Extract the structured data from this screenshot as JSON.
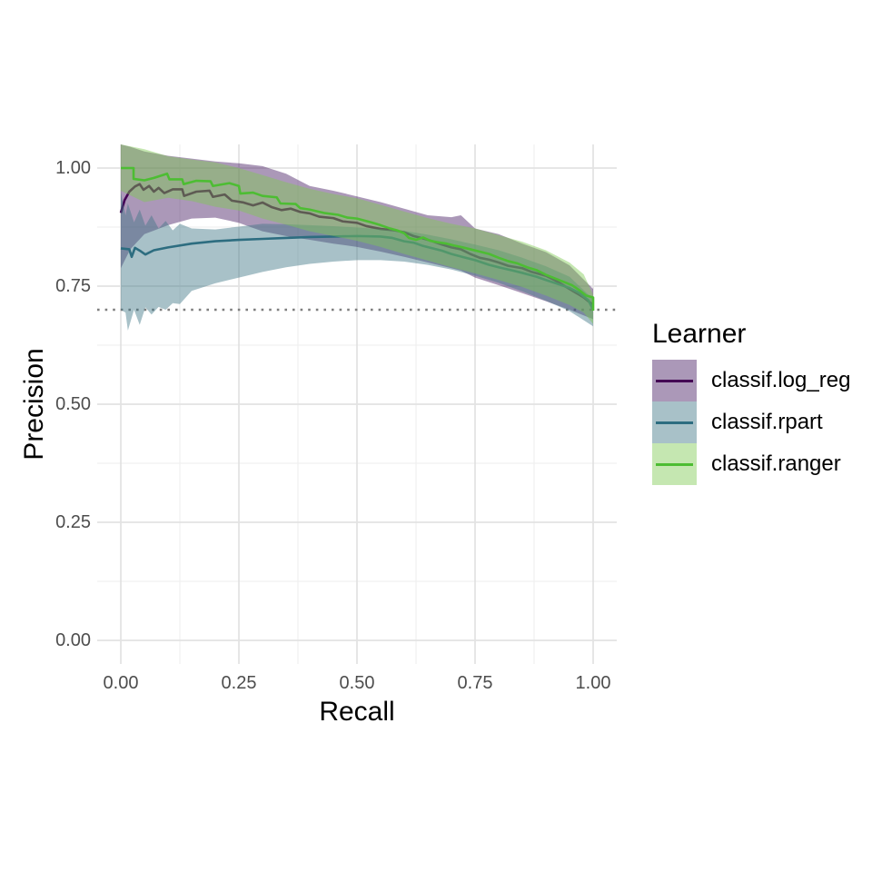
{
  "figure": {
    "background": "#ffffff"
  },
  "colors": {
    "grid_major": "#e3e3e3",
    "grid_minor": "#f0f0f0",
    "baseline": "#7e7e7e",
    "tick_text": "#4d4d4d",
    "title_text": "#000000"
  },
  "axes": {
    "x": {
      "ticks": [
        {
          "value": 0,
          "label": "0.00"
        },
        {
          "value": 0.25,
          "label": "0.25"
        },
        {
          "value": 0.5,
          "label": "0.50"
        },
        {
          "value": 0.75,
          "label": "0.75"
        },
        {
          "value": 1,
          "label": "1.00"
        }
      ],
      "minor_ticks": [
        0.125,
        0.375,
        0.625,
        0.875
      ]
    },
    "y": {
      "ticks": [
        {
          "value": 1,
          "label": "1.00"
        },
        {
          "value": 0.75,
          "label": "0.75"
        },
        {
          "value": 0.5,
          "label": "0.50"
        },
        {
          "value": 0.25,
          "label": "0.25"
        },
        {
          "value": 0,
          "label": "0.00"
        }
      ],
      "minor_ticks": [
        0.125,
        0.375,
        0.625,
        0.875
      ]
    }
  },
  "legend": {
    "title": "Learner",
    "position": "right"
  },
  "chart_data": {
    "type": "line",
    "title": "",
    "xlabel": "Recall",
    "ylabel": "Precision",
    "xlim": [
      0,
      1
    ],
    "ylim": [
      0,
      1
    ],
    "grid": true,
    "legend_position": "right",
    "baseline": {
      "value": 0.7,
      "linetype": "dotted",
      "color": "#7e7e7e"
    },
    "series": [
      {
        "name": "classif.log_reg",
        "line_color": "#440154",
        "fill_color": "rgba(68,26,97,0.45)",
        "points": [
          [
            0,
            0.905
          ],
          [
            0.008,
            0.932
          ],
          [
            0.018,
            0.95
          ],
          [
            0.03,
            0.961
          ],
          [
            0.04,
            0.966
          ],
          [
            0.048,
            0.954
          ],
          [
            0.06,
            0.962
          ],
          [
            0.07,
            0.95
          ],
          [
            0.08,
            0.958
          ],
          [
            0.092,
            0.947
          ],
          [
            0.11,
            0.955
          ],
          [
            0.13,
            0.955
          ],
          [
            0.134,
            0.941
          ],
          [
            0.16,
            0.95
          ],
          [
            0.188,
            0.952
          ],
          [
            0.195,
            0.939
          ],
          [
            0.22,
            0.944
          ],
          [
            0.235,
            0.931
          ],
          [
            0.26,
            0.927
          ],
          [
            0.28,
            0.921
          ],
          [
            0.3,
            0.927
          ],
          [
            0.32,
            0.917
          ],
          [
            0.34,
            0.911
          ],
          [
            0.36,
            0.914
          ],
          [
            0.38,
            0.907
          ],
          [
            0.4,
            0.904
          ],
          [
            0.42,
            0.897
          ],
          [
            0.45,
            0.894
          ],
          [
            0.47,
            0.887
          ],
          [
            0.5,
            0.884
          ],
          [
            0.52,
            0.877
          ],
          [
            0.55,
            0.871
          ],
          [
            0.58,
            0.868
          ],
          [
            0.6,
            0.864
          ],
          [
            0.62,
            0.856
          ],
          [
            0.64,
            0.851
          ],
          [
            0.66,
            0.845
          ],
          [
            0.68,
            0.838
          ],
          [
            0.7,
            0.832
          ],
          [
            0.72,
            0.828
          ],
          [
            0.74,
            0.818
          ],
          [
            0.76,
            0.81
          ],
          [
            0.78,
            0.806
          ],
          [
            0.8,
            0.8
          ],
          [
            0.82,
            0.793
          ],
          [
            0.85,
            0.788
          ],
          [
            0.87,
            0.78
          ],
          [
            0.9,
            0.772
          ],
          [
            0.92,
            0.762
          ],
          [
            0.94,
            0.75
          ],
          [
            0.96,
            0.738
          ],
          [
            0.98,
            0.726
          ],
          [
            1,
            0.71
          ]
        ],
        "band": [
          [
            0,
            0.788,
            1.05
          ],
          [
            0.02,
            0.828,
            1.045
          ],
          [
            0.05,
            0.86,
            1.035
          ],
          [
            0.1,
            0.879,
            1.026
          ],
          [
            0.15,
            0.893,
            1.02
          ],
          [
            0.2,
            0.895,
            1.014
          ],
          [
            0.25,
            0.884,
            1.01
          ],
          [
            0.3,
            0.866,
            1.004
          ],
          [
            0.35,
            0.856,
            0.988
          ],
          [
            0.4,
            0.848,
            0.962
          ],
          [
            0.45,
            0.84,
            0.952
          ],
          [
            0.5,
            0.833,
            0.94
          ],
          [
            0.55,
            0.823,
            0.928
          ],
          [
            0.6,
            0.812,
            0.914
          ],
          [
            0.65,
            0.8,
            0.9
          ],
          [
            0.7,
            0.788,
            0.896
          ],
          [
            0.72,
            0.783,
            0.9
          ],
          [
            0.75,
            0.768,
            0.872
          ],
          [
            0.8,
            0.752,
            0.86
          ],
          [
            0.85,
            0.735,
            0.84
          ],
          [
            0.9,
            0.718,
            0.822
          ],
          [
            0.95,
            0.7,
            0.794
          ],
          [
            1,
            0.68,
            0.744
          ]
        ]
      },
      {
        "name": "classif.rpart",
        "line_color": "#2d6d80",
        "fill_color": "rgba(62,117,133,0.45)",
        "points": [
          [
            0,
            0.83
          ],
          [
            0.018,
            0.828
          ],
          [
            0.023,
            0.812
          ],
          [
            0.03,
            0.831
          ],
          [
            0.042,
            0.824
          ],
          [
            0.052,
            0.817
          ],
          [
            0.07,
            0.826
          ],
          [
            0.1,
            0.832
          ],
          [
            0.15,
            0.84
          ],
          [
            0.2,
            0.845
          ],
          [
            0.25,
            0.848
          ],
          [
            0.3,
            0.85
          ],
          [
            0.35,
            0.852
          ],
          [
            0.4,
            0.854
          ],
          [
            0.45,
            0.855
          ],
          [
            0.5,
            0.856
          ],
          [
            0.55,
            0.855
          ],
          [
            0.575,
            0.852
          ],
          [
            0.6,
            0.845
          ],
          [
            0.62,
            0.842
          ],
          [
            0.64,
            0.835
          ],
          [
            0.66,
            0.83
          ],
          [
            0.68,
            0.825
          ],
          [
            0.7,
            0.818
          ],
          [
            0.73,
            0.81
          ],
          [
            0.75,
            0.805
          ],
          [
            0.78,
            0.795
          ],
          [
            0.8,
            0.79
          ],
          [
            0.83,
            0.783
          ],
          [
            0.85,
            0.778
          ],
          [
            0.88,
            0.77
          ],
          [
            0.9,
            0.763
          ],
          [
            0.93,
            0.753
          ],
          [
            0.95,
            0.746
          ],
          [
            0.97,
            0.736
          ],
          [
            0.99,
            0.72
          ],
          [
            1,
            0.7
          ]
        ],
        "band": [
          [
            0,
            0.7,
            0.948
          ],
          [
            0.01,
            0.694,
            0.9
          ],
          [
            0.015,
            0.656,
            0.925
          ],
          [
            0.028,
            0.7,
            0.885
          ],
          [
            0.04,
            0.668,
            0.912
          ],
          [
            0.052,
            0.705,
            0.878
          ],
          [
            0.065,
            0.69,
            0.9
          ],
          [
            0.08,
            0.706,
            0.872
          ],
          [
            0.095,
            0.7,
            0.888
          ],
          [
            0.11,
            0.714,
            0.868
          ],
          [
            0.125,
            0.712,
            0.882
          ],
          [
            0.15,
            0.74,
            0.872
          ],
          [
            0.2,
            0.756,
            0.87
          ],
          [
            0.25,
            0.768,
            0.876
          ],
          [
            0.3,
            0.78,
            0.882
          ],
          [
            0.35,
            0.79,
            0.881
          ],
          [
            0.4,
            0.797,
            0.879
          ],
          [
            0.45,
            0.802,
            0.877
          ],
          [
            0.5,
            0.805,
            0.874
          ],
          [
            0.55,
            0.805,
            0.871
          ],
          [
            0.6,
            0.802,
            0.867
          ],
          [
            0.65,
            0.795,
            0.859
          ],
          [
            0.7,
            0.785,
            0.849
          ],
          [
            0.75,
            0.772,
            0.838
          ],
          [
            0.8,
            0.757,
            0.826
          ],
          [
            0.85,
            0.739,
            0.81
          ],
          [
            0.9,
            0.719,
            0.792
          ],
          [
            0.95,
            0.697,
            0.77
          ],
          [
            1,
            0.665,
            0.722
          ]
        ]
      },
      {
        "name": "classif.ranger",
        "line_color": "#4dbd33",
        "fill_color": "rgba(126,201,82,0.45)",
        "points": [
          [
            0,
            1
          ],
          [
            0.027,
            1
          ],
          [
            0.027,
            0.977
          ],
          [
            0.05,
            0.974
          ],
          [
            0.07,
            0.979
          ],
          [
            0.098,
            0.988
          ],
          [
            0.103,
            0.976
          ],
          [
            0.13,
            0.976
          ],
          [
            0.133,
            0.966
          ],
          [
            0.16,
            0.973
          ],
          [
            0.19,
            0.972
          ],
          [
            0.195,
            0.962
          ],
          [
            0.23,
            0.968
          ],
          [
            0.25,
            0.962
          ],
          [
            0.253,
            0.946
          ],
          [
            0.28,
            0.948
          ],
          [
            0.3,
            0.941
          ],
          [
            0.33,
            0.938
          ],
          [
            0.338,
            0.925
          ],
          [
            0.37,
            0.924
          ],
          [
            0.38,
            0.915
          ],
          [
            0.4,
            0.912
          ],
          [
            0.43,
            0.905
          ],
          [
            0.46,
            0.901
          ],
          [
            0.48,
            0.895
          ],
          [
            0.5,
            0.893
          ],
          [
            0.53,
            0.885
          ],
          [
            0.55,
            0.879
          ],
          [
            0.57,
            0.872
          ],
          [
            0.585,
            0.868
          ],
          [
            0.6,
            0.862
          ],
          [
            0.61,
            0.852
          ],
          [
            0.625,
            0.848
          ],
          [
            0.64,
            0.853
          ],
          [
            0.655,
            0.846
          ],
          [
            0.67,
            0.843
          ],
          [
            0.69,
            0.84
          ],
          [
            0.705,
            0.836
          ],
          [
            0.72,
            0.833
          ],
          [
            0.74,
            0.828
          ],
          [
            0.76,
            0.823
          ],
          [
            0.78,
            0.818
          ],
          [
            0.8,
            0.81
          ],
          [
            0.82,
            0.803
          ],
          [
            0.84,
            0.798
          ],
          [
            0.86,
            0.79
          ],
          [
            0.88,
            0.784
          ],
          [
            0.9,
            0.774
          ],
          [
            0.92,
            0.766
          ],
          [
            0.94,
            0.758
          ],
          [
            0.955,
            0.752
          ],
          [
            0.97,
            0.742
          ],
          [
            0.985,
            0.73
          ],
          [
            1,
            0.726
          ],
          [
            1,
            0.698
          ]
        ],
        "band": [
          [
            0,
            0.952,
            1.05
          ],
          [
            0.05,
            0.928,
            1.04
          ],
          [
            0.1,
            0.937,
            1.025
          ],
          [
            0.15,
            0.93,
            1.018
          ],
          [
            0.2,
            0.918,
            1.012
          ],
          [
            0.25,
            0.91,
            1
          ],
          [
            0.3,
            0.893,
            0.985
          ],
          [
            0.35,
            0.88,
            0.97
          ],
          [
            0.4,
            0.866,
            0.956
          ],
          [
            0.45,
            0.856,
            0.945
          ],
          [
            0.5,
            0.846,
            0.936
          ],
          [
            0.55,
            0.833,
            0.922
          ],
          [
            0.6,
            0.818,
            0.908
          ],
          [
            0.65,
            0.804,
            0.894
          ],
          [
            0.7,
            0.79,
            0.882
          ],
          [
            0.75,
            0.777,
            0.872
          ],
          [
            0.8,
            0.763,
            0.858
          ],
          [
            0.85,
            0.748,
            0.844
          ],
          [
            0.9,
            0.73,
            0.826
          ],
          [
            0.95,
            0.71,
            0.8
          ],
          [
            0.98,
            0.694,
            0.775
          ],
          [
            1,
            0.67,
            0.732
          ]
        ]
      }
    ]
  }
}
